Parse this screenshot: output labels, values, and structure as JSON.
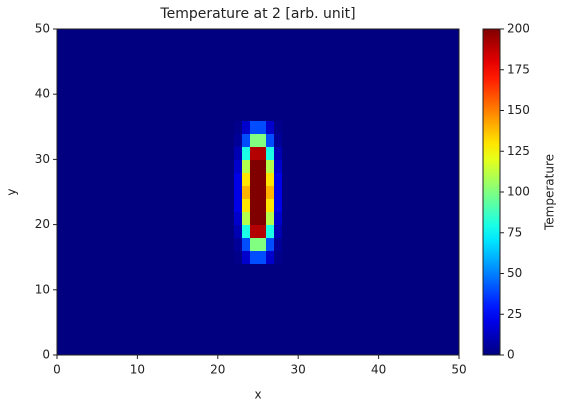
{
  "chart_data": {
    "type": "heatmap",
    "title": "Temperature at 2 [arb. unit]",
    "x_label": "x",
    "y_label": "y",
    "colorbar_label": "Temperature",
    "colormap": "jet",
    "x_edges": [
      0,
      22,
      23,
      24,
      25,
      26,
      27,
      28,
      50
    ],
    "y_edges": [
      0,
      14,
      16,
      18,
      20,
      22,
      24,
      26,
      28,
      30,
      32,
      34,
      36,
      50
    ],
    "z": [
      [
        0,
        0,
        0,
        0,
        0,
        0,
        0,
        0
      ],
      [
        0,
        2,
        15,
        40,
        40,
        15,
        2,
        0
      ],
      [
        0,
        5,
        40,
        100,
        100,
        40,
        5,
        0
      ],
      [
        0,
        10,
        80,
        190,
        190,
        80,
        10,
        0
      ],
      [
        0,
        15,
        110,
        200,
        200,
        110,
        15,
        0
      ],
      [
        0,
        20,
        130,
        200,
        200,
        130,
        20,
        0
      ],
      [
        0,
        20,
        140,
        200,
        200,
        140,
        20,
        0
      ],
      [
        0,
        20,
        130,
        200,
        200,
        130,
        20,
        0
      ],
      [
        0,
        15,
        110,
        200,
        200,
        110,
        15,
        0
      ],
      [
        0,
        10,
        80,
        190,
        190,
        80,
        10,
        0
      ],
      [
        0,
        5,
        40,
        100,
        100,
        40,
        5,
        0
      ],
      [
        0,
        2,
        15,
        40,
        40,
        15,
        2,
        0
      ],
      [
        0,
        0,
        0,
        0,
        0,
        0,
        0,
        0
      ]
    ],
    "xlim": [
      0,
      50
    ],
    "ylim": [
      0,
      50
    ],
    "xticks": [
      0,
      10,
      20,
      30,
      40,
      50
    ],
    "yticks": [
      0,
      10,
      20,
      30,
      40,
      50
    ],
    "clim": [
      0,
      200
    ],
    "cticks": [
      0,
      25,
      50,
      75,
      100,
      125,
      150,
      175,
      200
    ]
  }
}
